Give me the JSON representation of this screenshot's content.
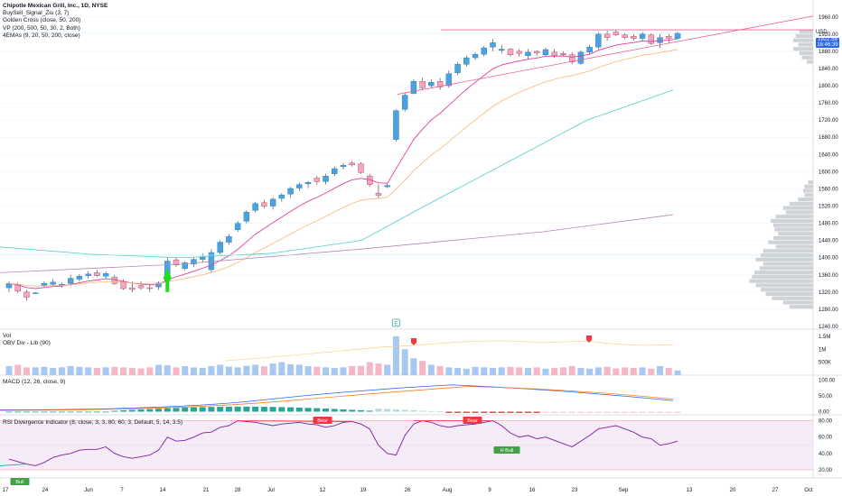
{
  "legend": {
    "title": "Chipotle Mexican Grill, Inc., 1D, NYSE",
    "lines": [
      "BuySell_Signal_Ziu (3, 7)",
      "Golden Cross (close, 50, 200)",
      "VP (200, 500, 50, 30, 2, Both)",
      "4EMAs (9, 20, 50, 200, close)"
    ]
  },
  "currency": "USD",
  "last_price": "1922.58",
  "last_countdown": "16:46:39",
  "chart_data": {
    "type": "candlestick",
    "price_axis": {
      "ticks": [
        1960,
        1920,
        1880,
        1840,
        1800,
        1760,
        1720,
        1680,
        1640,
        1600,
        1560,
        1520,
        1480,
        1440,
        1400,
        1360,
        1320,
        1280,
        1240
      ],
      "tick_labels": [
        "1960.00",
        "1920.00",
        "1880.00",
        "1840.00",
        "1800.00",
        "1760.00",
        "1720.00",
        "1680.00",
        "1640.00",
        "1600.00",
        "1560.00",
        "1520.00",
        "1480.00",
        "1440.00",
        "1400.00",
        "1360.00",
        "1320.00",
        "1280.00",
        "1240.00"
      ],
      "range": [
        1240,
        1970
      ]
    },
    "time_axis": [
      "17",
      "24",
      "Jun",
      "7",
      "14",
      "21",
      "28",
      "Jul",
      "12",
      "19",
      "26",
      "Aug",
      "9",
      "16",
      "23",
      "Sep",
      "13",
      "20",
      "27",
      "Oct"
    ],
    "candles": [
      {
        "o": 1330,
        "h": 1345,
        "l": 1320,
        "c": 1340
      },
      {
        "o": 1338,
        "h": 1342,
        "l": 1318,
        "c": 1322
      },
      {
        "o": 1320,
        "h": 1325,
        "l": 1300,
        "c": 1308
      },
      {
        "o": 1318,
        "h": 1320,
        "l": 1316,
        "c": 1318
      },
      {
        "o": 1335,
        "h": 1345,
        "l": 1330,
        "c": 1340
      },
      {
        "o": 1338,
        "h": 1350,
        "l": 1333,
        "c": 1343
      },
      {
        "o": 1335,
        "h": 1342,
        "l": 1330,
        "c": 1338
      },
      {
        "o": 1340,
        "h": 1360,
        "l": 1335,
        "c": 1352
      },
      {
        "o": 1350,
        "h": 1362,
        "l": 1345,
        "c": 1357
      },
      {
        "o": 1358,
        "h": 1368,
        "l": 1352,
        "c": 1362
      },
      {
        "o": 1365,
        "h": 1372,
        "l": 1355,
        "c": 1358
      },
      {
        "o": 1357,
        "h": 1368,
        "l": 1350,
        "c": 1363
      },
      {
        "o": 1355,
        "h": 1360,
        "l": 1337,
        "c": 1340
      },
      {
        "o": 1345,
        "h": 1350,
        "l": 1325,
        "c": 1328
      },
      {
        "o": 1330,
        "h": 1345,
        "l": 1320,
        "c": 1326
      },
      {
        "o": 1335,
        "h": 1345,
        "l": 1325,
        "c": 1330
      },
      {
        "o": 1330,
        "h": 1340,
        "l": 1320,
        "c": 1328
      },
      {
        "o": 1332,
        "h": 1345,
        "l": 1325,
        "c": 1341
      },
      {
        "o": 1345,
        "h": 1400,
        "l": 1340,
        "c": 1392
      },
      {
        "o": 1395,
        "h": 1400,
        "l": 1378,
        "c": 1383
      },
      {
        "o": 1375,
        "h": 1392,
        "l": 1370,
        "c": 1388
      },
      {
        "o": 1385,
        "h": 1400,
        "l": 1378,
        "c": 1396
      },
      {
        "o": 1396,
        "h": 1410,
        "l": 1390,
        "c": 1402
      },
      {
        "o": 1372,
        "h": 1420,
        "l": 1365,
        "c": 1412
      },
      {
        "o": 1412,
        "h": 1440,
        "l": 1408,
        "c": 1436
      },
      {
        "o": 1436,
        "h": 1455,
        "l": 1430,
        "c": 1449
      },
      {
        "o": 1465,
        "h": 1485,
        "l": 1460,
        "c": 1480
      },
      {
        "o": 1485,
        "h": 1510,
        "l": 1480,
        "c": 1506
      },
      {
        "o": 1510,
        "h": 1530,
        "l": 1505,
        "c": 1526
      },
      {
        "o": 1528,
        "h": 1535,
        "l": 1515,
        "c": 1520
      },
      {
        "o": 1520,
        "h": 1540,
        "l": 1512,
        "c": 1536
      },
      {
        "o": 1538,
        "h": 1550,
        "l": 1530,
        "c": 1546
      },
      {
        "o": 1548,
        "h": 1565,
        "l": 1540,
        "c": 1561
      },
      {
        "o": 1562,
        "h": 1575,
        "l": 1555,
        "c": 1570
      },
      {
        "o": 1572,
        "h": 1578,
        "l": 1562,
        "c": 1575
      },
      {
        "o": 1585,
        "h": 1590,
        "l": 1570,
        "c": 1577
      },
      {
        "o": 1577,
        "h": 1595,
        "l": 1570,
        "c": 1590
      },
      {
        "o": 1595,
        "h": 1612,
        "l": 1590,
        "c": 1607
      },
      {
        "o": 1612,
        "h": 1620,
        "l": 1605,
        "c": 1615
      },
      {
        "o": 1620,
        "h": 1625,
        "l": 1612,
        "c": 1616
      },
      {
        "o": 1618,
        "h": 1622,
        "l": 1595,
        "c": 1598
      },
      {
        "o": 1590,
        "h": 1595,
        "l": 1565,
        "c": 1570
      },
      {
        "o": 1550,
        "h": 1570,
        "l": 1538,
        "c": 1545
      },
      {
        "o": 1565,
        "h": 1572,
        "l": 1562,
        "c": 1568
      },
      {
        "o": 1675,
        "h": 1745,
        "l": 1670,
        "c": 1742
      },
      {
        "o": 1745,
        "h": 1785,
        "l": 1740,
        "c": 1778
      },
      {
        "o": 1782,
        "h": 1815,
        "l": 1780,
        "c": 1810
      },
      {
        "o": 1810,
        "h": 1818,
        "l": 1790,
        "c": 1795
      },
      {
        "o": 1800,
        "h": 1815,
        "l": 1795,
        "c": 1808
      },
      {
        "o": 1810,
        "h": 1818,
        "l": 1790,
        "c": 1797
      },
      {
        "o": 1800,
        "h": 1835,
        "l": 1795,
        "c": 1828
      },
      {
        "o": 1830,
        "h": 1855,
        "l": 1825,
        "c": 1850
      },
      {
        "o": 1850,
        "h": 1870,
        "l": 1845,
        "c": 1865
      },
      {
        "o": 1865,
        "h": 1878,
        "l": 1860,
        "c": 1873
      },
      {
        "o": 1873,
        "h": 1893,
        "l": 1868,
        "c": 1888
      },
      {
        "o": 1890,
        "h": 1908,
        "l": 1880,
        "c": 1900
      },
      {
        "o": 1882,
        "h": 1895,
        "l": 1875,
        "c": 1885
      },
      {
        "o": 1885,
        "h": 1888,
        "l": 1868,
        "c": 1872
      },
      {
        "o": 1880,
        "h": 1885,
        "l": 1868,
        "c": 1875
      },
      {
        "o": 1870,
        "h": 1885,
        "l": 1862,
        "c": 1878
      },
      {
        "o": 1880,
        "h": 1882,
        "l": 1870,
        "c": 1876
      },
      {
        "o": 1872,
        "h": 1888,
        "l": 1868,
        "c": 1884
      },
      {
        "o": 1878,
        "h": 1885,
        "l": 1865,
        "c": 1870
      },
      {
        "o": 1875,
        "h": 1880,
        "l": 1868,
        "c": 1872
      },
      {
        "o": 1872,
        "h": 1878,
        "l": 1850,
        "c": 1855
      },
      {
        "o": 1852,
        "h": 1882,
        "l": 1848,
        "c": 1878
      },
      {
        "o": 1878,
        "h": 1895,
        "l": 1872,
        "c": 1890
      },
      {
        "o": 1890,
        "h": 1925,
        "l": 1885,
        "c": 1920
      },
      {
        "o": 1920,
        "h": 1928,
        "l": 1905,
        "c": 1912
      },
      {
        "o": 1925,
        "h": 1930,
        "l": 1915,
        "c": 1918
      },
      {
        "o": 1918,
        "h": 1922,
        "l": 1908,
        "c": 1912
      },
      {
        "o": 1915,
        "h": 1920,
        "l": 1905,
        "c": 1910
      },
      {
        "o": 1910,
        "h": 1925,
        "l": 1905,
        "c": 1920
      },
      {
        "o": 1918,
        "h": 1922,
        "l": 1895,
        "c": 1898
      },
      {
        "o": 1900,
        "h": 1920,
        "l": 1888,
        "c": 1912
      },
      {
        "o": 1915,
        "h": 1920,
        "l": 1898,
        "c": 1910
      },
      {
        "o": 1910,
        "h": 1925,
        "l": 1908,
        "c": 1922
      }
    ],
    "volume_axis": [
      "1.5M",
      "1M",
      "500K"
    ],
    "volume": [
      0.35,
      0.4,
      0.3,
      0.3,
      0.32,
      0.28,
      0.3,
      0.35,
      0.32,
      0.3,
      0.28,
      0.3,
      0.32,
      0.3,
      0.28,
      0.26,
      0.3,
      0.4,
      0.38,
      0.3,
      0.35,
      0.3,
      0.28,
      0.35,
      0.4,
      0.33,
      0.3,
      0.36,
      0.4,
      0.34,
      0.45,
      0.5,
      0.42,
      0.4,
      0.35,
      0.32,
      0.3,
      0.28,
      0.3,
      0.35,
      0.36,
      0.5,
      0.45,
      0.4,
      1.5,
      1.0,
      0.65,
      0.55,
      0.4,
      0.35,
      0.3,
      0.28,
      0.25,
      0.32,
      0.3,
      0.28,
      0.3,
      0.32,
      0.3,
      0.28,
      0.3,
      0.25,
      0.28,
      0.3,
      0.35,
      0.28,
      0.25,
      0.3,
      0.32,
      0.26,
      0.3,
      0.28,
      0.3,
      0.25,
      0.35,
      0.28,
      0.18
    ],
    "macd_axis": [
      "100.00",
      "50.00",
      "0.00"
    ],
    "rsi_axis": [
      "80.00",
      "60.00",
      "40.00",
      "20.00"
    ],
    "rsi_bands": {
      "upper": 80,
      "lower": 20
    },
    "rsi_axis_range": [
      10,
      85
    ],
    "macd_axis_range": [
      -10,
      110
    ],
    "labels": {
      "vol": "Vol",
      "obv": "OBV Div - Lib (90)",
      "macd": "MACD (12, 26, close, 9)",
      "rsi": "RSI Divergence Indicator (8, close, 3, 3, 80, 60, 3, Default, 5, 14, 3.5)",
      "bear": "Bear",
      "bull": "Bull",
      "hbull": "H Bull",
      "e_marker": "E"
    }
  }
}
